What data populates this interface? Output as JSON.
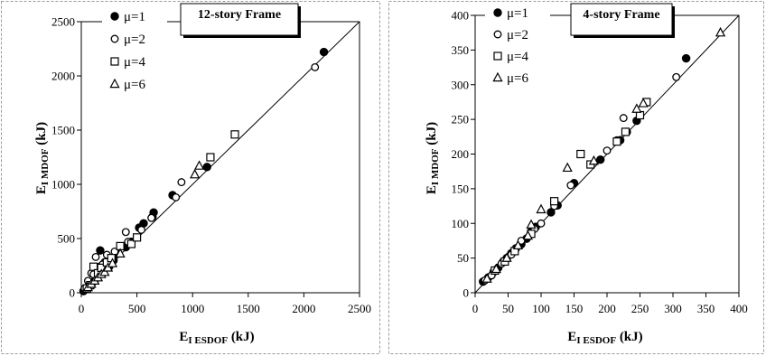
{
  "chart_data": [
    {
      "type": "scatter",
      "title": "12-story Frame",
      "xlabel_main": "E",
      "xlabel_sub": "I ESDOF",
      "xlabel_unit": " (kJ)",
      "ylabel_main": "E",
      "ylabel_sub": "I MDOF",
      "ylabel_unit": " (kJ)",
      "xlim": [
        0,
        2500
      ],
      "ylim": [
        0,
        2500
      ],
      "xticks": [
        0,
        500,
        1000,
        1500,
        2000,
        2500
      ],
      "yticks": [
        0,
        500,
        1000,
        1500,
        2000,
        2500
      ],
      "grid": false,
      "legend_position": "top-left",
      "reference_line": "y = x",
      "series": [
        {
          "name": "μ=1",
          "marker": "filled-circle",
          "points": [
            [
              20,
              15
            ],
            [
              40,
              35
            ],
            [
              70,
              65
            ],
            [
              100,
              95
            ],
            [
              120,
              110
            ],
            [
              150,
              170
            ],
            [
              170,
              390
            ],
            [
              210,
              280
            ],
            [
              250,
              240
            ],
            [
              290,
              300
            ],
            [
              330,
              360
            ],
            [
              400,
              420
            ],
            [
              450,
              470
            ],
            [
              520,
              600
            ],
            [
              560,
              640
            ],
            [
              640,
              700
            ],
            [
              650,
              740
            ],
            [
              820,
              900
            ],
            [
              1130,
              1160
            ],
            [
              2180,
              2220
            ]
          ]
        },
        {
          "name": "μ=2",
          "marker": "open-circle",
          "points": [
            [
              30,
              40
            ],
            [
              60,
              110
            ],
            [
              90,
              180
            ],
            [
              110,
              170
            ],
            [
              130,
              330
            ],
            [
              160,
              240
            ],
            [
              190,
              260
            ],
            [
              230,
              350
            ],
            [
              300,
              380
            ],
            [
              400,
              560
            ],
            [
              420,
              470
            ],
            [
              540,
              580
            ],
            [
              630,
              690
            ],
            [
              850,
              880
            ],
            [
              900,
              1020
            ],
            [
              2100,
              2080
            ]
          ]
        },
        {
          "name": "μ=4",
          "marker": "open-square",
          "points": [
            [
              50,
              40
            ],
            [
              80,
              70
            ],
            [
              110,
              240
            ],
            [
              150,
              180
            ],
            [
              180,
              230
            ],
            [
              230,
              280
            ],
            [
              270,
              320
            ],
            [
              350,
              430
            ],
            [
              450,
              450
            ],
            [
              500,
              510
            ],
            [
              1160,
              1250
            ],
            [
              1380,
              1460
            ]
          ]
        },
        {
          "name": "μ=6",
          "marker": "open-triangle",
          "points": [
            [
              60,
              50
            ],
            [
              90,
              80
            ],
            [
              120,
              110
            ],
            [
              150,
              140
            ],
            [
              180,
              170
            ],
            [
              210,
              190
            ],
            [
              240,
              230
            ],
            [
              280,
              270
            ],
            [
              350,
              360
            ],
            [
              1020,
              1090
            ],
            [
              1060,
              1170
            ]
          ]
        }
      ]
    },
    {
      "type": "scatter",
      "title": "4-story Frame",
      "xlabel_main": "E",
      "xlabel_sub": "I ESDOF",
      "xlabel_unit": " (kJ)",
      "ylabel_main": "E",
      "ylabel_sub": "I MDOF",
      "ylabel_unit": " (kJ)",
      "xlim": [
        0,
        400
      ],
      "ylim": [
        0,
        400
      ],
      "xticks": [
        0,
        50,
        100,
        150,
        200,
        250,
        300,
        350,
        400
      ],
      "yticks": [
        0,
        50,
        100,
        150,
        200,
        250,
        300,
        350,
        400
      ],
      "grid": false,
      "legend_position": "top-left",
      "reference_line": "y = x",
      "series": [
        {
          "name": "μ=1",
          "marker": "filled-circle",
          "points": [
            [
              12,
              16
            ],
            [
              20,
              22
            ],
            [
              28,
              30
            ],
            [
              35,
              36
            ],
            [
              42,
              44
            ],
            [
              48,
              50
            ],
            [
              55,
              57
            ],
            [
              62,
              64
            ],
            [
              70,
              70
            ],
            [
              78,
              78
            ],
            [
              85,
              88
            ],
            [
              92,
              95
            ],
            [
              115,
              116
            ],
            [
              125,
              126
            ],
            [
              150,
              158
            ],
            [
              190,
              192
            ],
            [
              220,
              220
            ],
            [
              230,
              232
            ],
            [
              245,
              248
            ],
            [
              320,
              338
            ]
          ]
        },
        {
          "name": "μ=2",
          "marker": "open-circle",
          "points": [
            [
              15,
              18
            ],
            [
              25,
              25
            ],
            [
              40,
              42
            ],
            [
              55,
              55
            ],
            [
              70,
              75
            ],
            [
              90,
              92
            ],
            [
              100,
              100
            ],
            [
              120,
              125
            ],
            [
              145,
              155
            ],
            [
              200,
              205
            ],
            [
              215,
              220
            ],
            [
              225,
              252
            ],
            [
              305,
              311
            ]
          ]
        },
        {
          "name": "μ=4",
          "marker": "open-square",
          "points": [
            [
              30,
              32
            ],
            [
              45,
              45
            ],
            [
              60,
              60
            ],
            [
              85,
              85
            ],
            [
              120,
              132
            ],
            [
              160,
              200
            ],
            [
              175,
              185
            ],
            [
              215,
              218
            ],
            [
              228,
              232
            ],
            [
              250,
              256
            ],
            [
              260,
              275
            ]
          ]
        },
        {
          "name": "μ=6",
          "marker": "open-triangle",
          "points": [
            [
              18,
              20
            ],
            [
              32,
              34
            ],
            [
              48,
              50
            ],
            [
              65,
              68
            ],
            [
              80,
              82
            ],
            [
              85,
              98
            ],
            [
              100,
              120
            ],
            [
              140,
              180
            ],
            [
              180,
              190
            ],
            [
              245,
              265
            ],
            [
              255,
              273
            ],
            [
              372,
              375
            ]
          ]
        }
      ]
    }
  ]
}
